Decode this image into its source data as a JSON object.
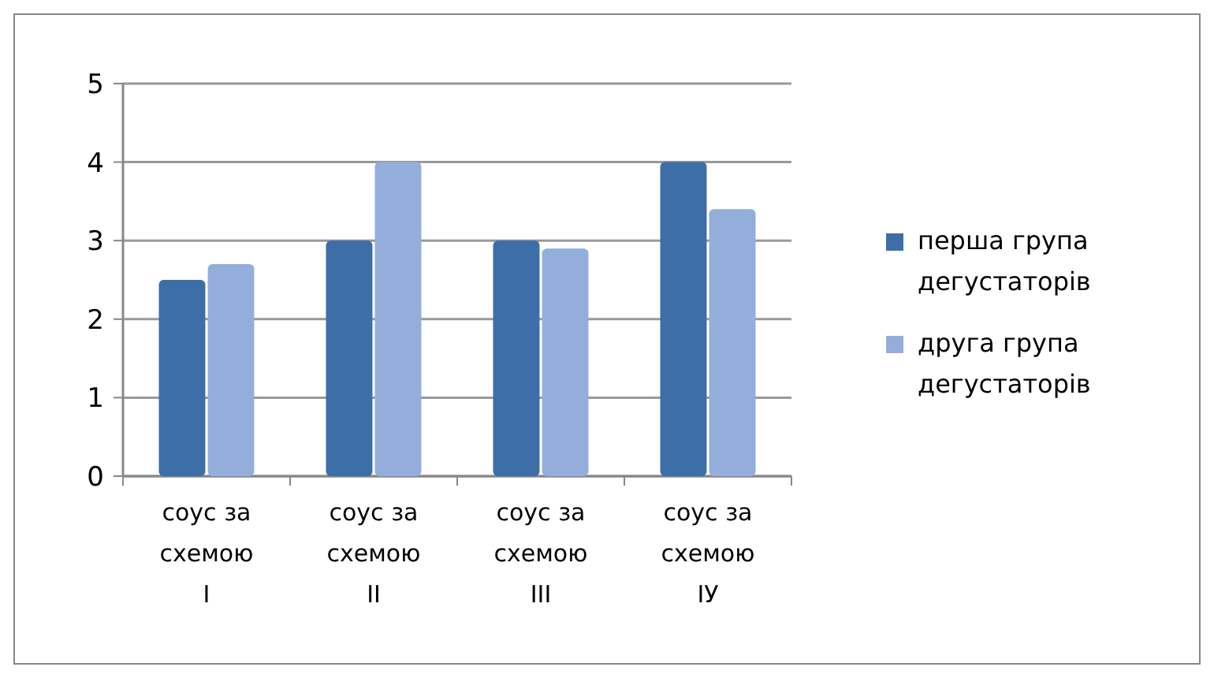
{
  "chart_data": {
    "type": "bar",
    "categories": [
      "соус за схемою І",
      "соус за схемою ІІ",
      "соус за схемою ІІІ",
      "соус за схемою ІУ"
    ],
    "series": [
      {
        "name": "перша група дегустаторів",
        "color": "#3d6ea8",
        "values": [
          2.5,
          3.0,
          3.0,
          4.0
        ]
      },
      {
        "name": "друга група дегустаторів",
        "color": "#94aedb",
        "values": [
          2.7,
          4.0,
          2.9,
          3.4
        ]
      }
    ],
    "ylim": [
      0,
      5
    ],
    "yticks": [
      0,
      1,
      2,
      3,
      4,
      5
    ],
    "grid": "y",
    "legend": "right"
  }
}
